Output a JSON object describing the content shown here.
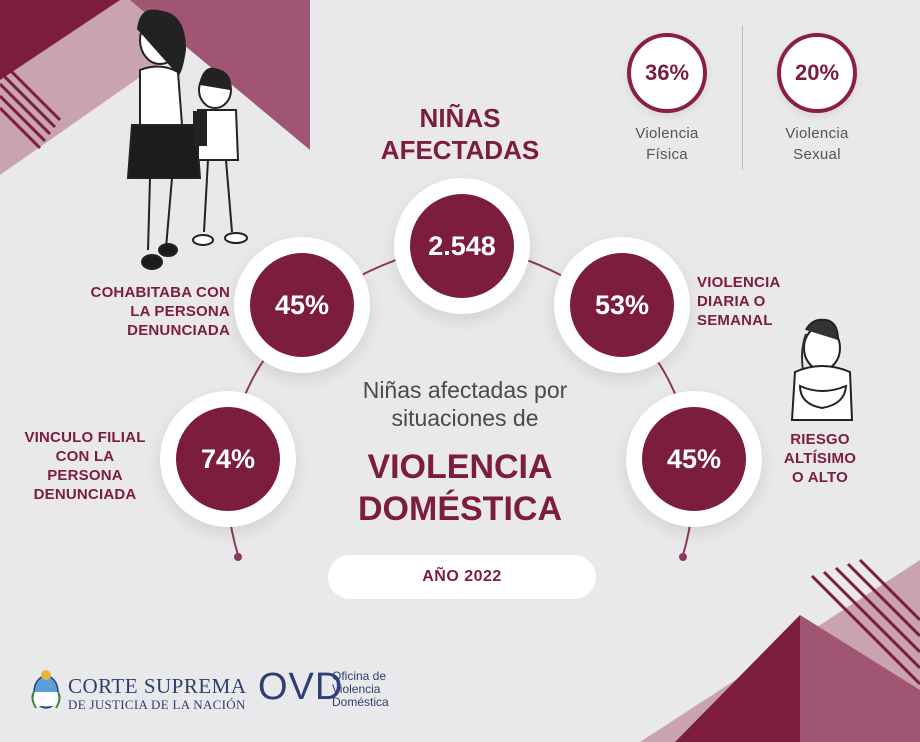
{
  "header": {
    "title": "NIÑAS\nAFECTADAS"
  },
  "top_stats": [
    {
      "value": "36%",
      "label": "Violencia\nFísica"
    },
    {
      "value": "20%",
      "label": "Violencia\nSexual"
    }
  ],
  "main_total": "2.548",
  "stats": [
    {
      "value": "45%",
      "label": "COHABITABA CON\nLA PERSONA\nDENUNCIADA"
    },
    {
      "value": "74%",
      "label": "VINCULO FILIAL\nCON LA\nPERSONA\nDENUNCIADA"
    },
    {
      "value": "53%",
      "label": "VIOLENCIA\nDIARIA O\nSEMANAL"
    },
    {
      "value": "45%",
      "label": "RIESGO\nALTÍSIMO\nO ALTO"
    }
  ],
  "center": {
    "subtitle": "Niñas afectadas por\nsituaciones de",
    "title": "VIOLENCIA\nDOMÉSTICA"
  },
  "year": "AÑO 2022",
  "logos": {
    "corte_line1": "CORTE SUPREMA",
    "corte_line2": "DE JUSTICIA DE LA NACIÓN",
    "ovd_abbr": "OVD",
    "ovd_full": "Oficina de\nViolencia\nDoméstica"
  },
  "colors": {
    "primary": "#7c1c3f",
    "background": "#e9e8ea",
    "logo_blue": "#2d3f73"
  }
}
